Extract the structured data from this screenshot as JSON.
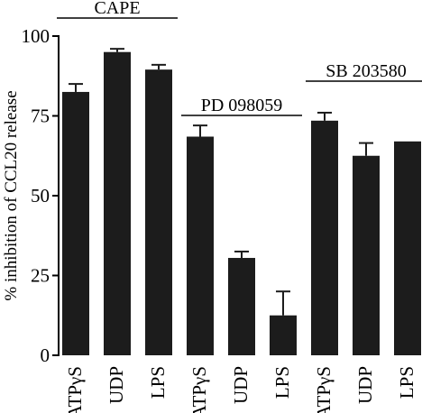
{
  "chart_data": {
    "type": "bar",
    "ylabel": "% inhibition of CCL20 release",
    "xlabel": "",
    "ylim": [
      0,
      100
    ],
    "yticks": [
      0,
      25,
      50,
      75,
      100
    ],
    "categories": [
      "ATPγS",
      "UDP",
      "LPS",
      "ATPγS",
      "UDP",
      "LPS",
      "ATPγS",
      "UDP",
      "LPS"
    ],
    "values": [
      82.5,
      95,
      89.5,
      68.5,
      30.5,
      12.5,
      73.5,
      62.5,
      67
    ],
    "errors": [
      2.5,
      1,
      1.5,
      3.5,
      2,
      7.5,
      2.5,
      4,
      0.2
    ],
    "bar_color": "#1c1c1c",
    "groups": [
      {
        "label": "CAPE",
        "start": 0,
        "end": 2
      },
      {
        "label": "PD 098059",
        "start": 3,
        "end": 5
      },
      {
        "label": "SB 203580",
        "start": 6,
        "end": 8
      }
    ]
  }
}
